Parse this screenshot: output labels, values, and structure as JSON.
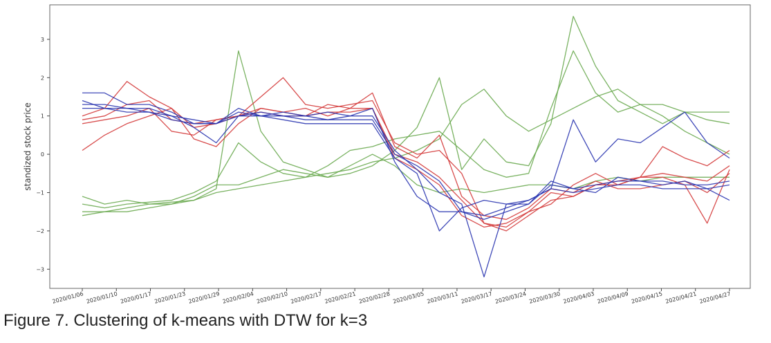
{
  "caption": "Figure 7. Clustering of k-means with DTW for k=3",
  "chart_data": {
    "type": "line",
    "title": "",
    "ylabel": "standized stock price",
    "xlabel": "",
    "ylim": [
      -3.5,
      3.9
    ],
    "yticks": [
      -3,
      -2,
      -1,
      0,
      1,
      2,
      3
    ],
    "ytick_labels": [
      "−3",
      "−2",
      "−1",
      "0",
      "1",
      "2",
      "3"
    ],
    "xtick_labels": [
      "2020/01/06",
      "2020/01/10",
      "2020/01/17",
      "2020/01/23",
      "2020/01/29",
      "2020/02/04",
      "2020/02/10",
      "2020/02/17",
      "2020/02/21",
      "2020/02/28",
      "2020/03/05",
      "2020/03/11",
      "2020/03/17",
      "2020/03/24",
      "2020/03/30",
      "2020/04/03",
      "2020/04/09",
      "2020/04/15",
      "2020/04/21",
      "2020/04/27"
    ],
    "grid": false,
    "legend": "none",
    "colors": {
      "cluster_blue": "#2a35b0",
      "cluster_red": "#d43a3a",
      "cluster_green": "#6aaa50"
    },
    "series": [
      {
        "cluster": "green",
        "values": [
          -1.1,
          -1.3,
          -1.2,
          -1.3,
          -1.25,
          -1.2,
          -0.9,
          2.7,
          0.6,
          -0.2,
          -0.4,
          -0.6,
          -0.5,
          -0.3,
          0.1,
          0.7,
          2.0,
          -0.4,
          0.4,
          -0.2,
          -0.3,
          0.8,
          3.6,
          2.3,
          1.4,
          1.1,
          0.8,
          1.1,
          0.9,
          0.8
        ]
      },
      {
        "cluster": "green",
        "values": [
          -1.3,
          -1.4,
          -1.3,
          -1.25,
          -1.2,
          -1.0,
          -0.7,
          0.3,
          -0.2,
          -0.5,
          -0.6,
          -0.3,
          0.1,
          0.2,
          0.4,
          0.5,
          0.6,
          0.1,
          -0.4,
          -0.6,
          -0.5,
          1.2,
          2.7,
          1.6,
          1.1,
          1.3,
          1.3,
          1.1,
          1.1,
          1.1
        ]
      },
      {
        "cluster": "green",
        "values": [
          -1.5,
          -1.5,
          -1.4,
          -1.3,
          -1.3,
          -1.1,
          -0.8,
          -0.8,
          -0.6,
          -0.4,
          -0.5,
          -0.6,
          -0.3,
          0.0,
          -0.3,
          -0.8,
          -1.0,
          -0.9,
          -1.0,
          -0.9,
          -0.8,
          -0.8,
          -0.9,
          -0.7,
          -0.6,
          -0.7,
          -0.6,
          -0.6,
          -0.6,
          -0.6
        ]
      },
      {
        "cluster": "green",
        "values": [
          -1.6,
          -1.5,
          -1.5,
          -1.4,
          -1.3,
          -1.2,
          -1.0,
          -0.9,
          -0.8,
          -0.7,
          -0.6,
          -0.5,
          -0.4,
          -0.2,
          -0.1,
          0.1,
          0.4,
          1.3,
          1.7,
          1.0,
          0.6,
          0.9,
          1.2,
          1.5,
          1.7,
          1.3,
          1.0,
          0.6,
          0.3,
          0.0
        ]
      },
      {
        "cluster": "red",
        "values": [
          1.0,
          1.2,
          1.9,
          1.5,
          1.2,
          0.7,
          0.8,
          1.0,
          1.5,
          2.0,
          1.3,
          1.2,
          1.3,
          1.4,
          0.3,
          0.0,
          0.1,
          -0.5,
          -1.8,
          -1.9,
          -1.5,
          -1.0,
          -1.1,
          -0.8,
          -0.8,
          -0.6,
          -0.6,
          -0.8,
          -1.8,
          -0.4
        ]
      },
      {
        "cluster": "red",
        "values": [
          0.1,
          0.5,
          0.8,
          1.0,
          1.2,
          0.4,
          0.2,
          0.8,
          1.2,
          1.1,
          1.0,
          1.3,
          1.2,
          1.6,
          0.2,
          -0.1,
          0.5,
          -1.1,
          -1.6,
          -1.7,
          -1.4,
          -0.9,
          -1.0,
          -0.7,
          -0.9,
          -0.9,
          -0.8,
          -0.7,
          -1.0,
          -0.5
        ]
      },
      {
        "cluster": "red",
        "values": [
          0.9,
          1.0,
          1.3,
          1.4,
          0.9,
          0.8,
          0.9,
          1.0,
          1.1,
          1.0,
          1.0,
          1.1,
          1.1,
          1.2,
          0.0,
          -0.2,
          -0.6,
          -1.2,
          -1.8,
          -2.0,
          -1.6,
          -1.2,
          -1.1,
          -0.8,
          -0.7,
          -0.6,
          -0.5,
          -0.6,
          -0.7,
          -0.3
        ]
      },
      {
        "cluster": "red",
        "values": [
          0.8,
          0.9,
          1.0,
          1.2,
          0.6,
          0.5,
          0.9,
          1.0,
          1.2,
          1.1,
          1.2,
          1.0,
          1.2,
          1.2,
          -0.1,
          -0.4,
          -0.8,
          -1.6,
          -1.9,
          -1.8,
          -1.5,
          -1.3,
          -0.8,
          -0.5,
          -0.8,
          -0.6,
          0.2,
          -0.1,
          -0.3,
          0.1
        ]
      },
      {
        "cluster": "blue",
        "values": [
          1.6,
          1.6,
          1.3,
          1.3,
          1.1,
          0.8,
          0.8,
          1.2,
          1.0,
          1.1,
          1.0,
          1.1,
          1.0,
          1.2,
          -0.2,
          -1.1,
          -1.5,
          -1.5,
          -1.6,
          -1.4,
          -1.2,
          -0.9,
          0.9,
          -0.2,
          0.4,
          0.3,
          0.7,
          1.1,
          0.3,
          -0.1
        ]
      },
      {
        "cluster": "blue",
        "values": [
          1.4,
          1.2,
          1.2,
          1.1,
          1.0,
          0.7,
          0.3,
          1.0,
          1.1,
          1.0,
          1.0,
          0.9,
          1.0,
          1.0,
          0.1,
          -0.4,
          -1.0,
          -1.3,
          -3.2,
          -1.3,
          -1.3,
          -0.7,
          -0.9,
          -1.0,
          -0.6,
          -0.7,
          -0.8,
          -0.7,
          -0.9,
          -1.2
        ]
      },
      {
        "cluster": "blue",
        "values": [
          1.3,
          1.3,
          1.2,
          1.2,
          1.0,
          0.9,
          0.8,
          1.1,
          1.0,
          1.0,
          0.9,
          0.9,
          0.9,
          0.9,
          0.0,
          -0.3,
          -0.7,
          -1.5,
          -1.7,
          -1.5,
          -1.3,
          -0.8,
          -0.9,
          -0.8,
          -0.7,
          -0.7,
          -0.7,
          -0.8,
          -0.8,
          -0.7
        ]
      },
      {
        "cluster": "blue",
        "values": [
          1.2,
          1.2,
          1.1,
          1.1,
          0.9,
          0.8,
          0.8,
          1.0,
          1.0,
          0.9,
          0.8,
          0.8,
          0.8,
          0.8,
          -0.1,
          -0.5,
          -2.0,
          -1.4,
          -1.2,
          -1.3,
          -1.2,
          -0.9,
          -1.0,
          -0.9,
          -0.8,
          -0.8,
          -0.9,
          -0.9,
          -0.9,
          -0.8
        ]
      }
    ]
  }
}
